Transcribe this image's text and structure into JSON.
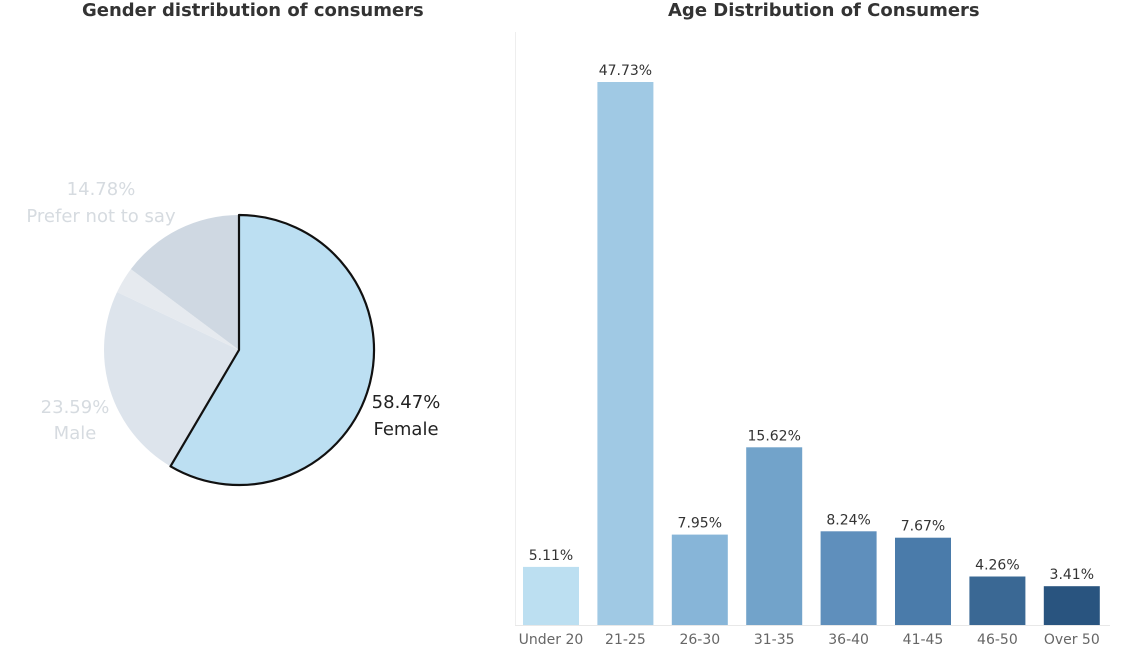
{
  "chart_data": [
    {
      "type": "pie",
      "title": "Gender distribution of consumers",
      "slices": [
        {
          "label": "Female",
          "value": 58.47,
          "value_label": "58.47%",
          "color": "#bcdff2",
          "highlighted": true
        },
        {
          "label": "Male",
          "value": 23.59,
          "value_label": "23.59%",
          "color": "#dde4ec",
          "highlighted": false
        },
        {
          "label": "",
          "value": 3.16,
          "value_label": "",
          "color": "#e6eaef",
          "highlighted": false
        },
        {
          "label": "Prefer not to say",
          "value": 14.78,
          "value_label": "14.78%",
          "color": "#cfd8e2",
          "highlighted": false
        }
      ]
    },
    {
      "type": "bar",
      "title": "Age Distribution of Consumers",
      "categories": [
        "Under 20",
        "21-25",
        "26-30",
        "31-35",
        "36-40",
        "41-45",
        "46-50",
        "Over 50"
      ],
      "values": [
        5.11,
        47.73,
        7.95,
        15.62,
        8.24,
        7.67,
        4.26,
        3.41
      ],
      "value_labels": [
        "5.11%",
        "47.73%",
        "7.95%",
        "15.62%",
        "8.24%",
        "7.67%",
        "4.26%",
        "3.41%"
      ],
      "colors": [
        "#bcdff1",
        "#a0c9e4",
        "#87b5d8",
        "#72a3ca",
        "#5f8fbc",
        "#4a7baa",
        "#3a6894",
        "#29547f"
      ],
      "grid": false,
      "ylim": [
        0,
        47.73
      ]
    }
  ]
}
